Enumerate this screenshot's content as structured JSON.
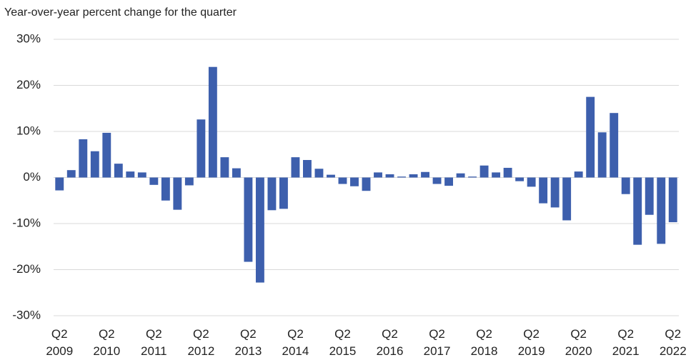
{
  "chart_data": {
    "type": "bar",
    "title": "Year-over-year percent change for the quarter",
    "categories": [
      "Q2 2009",
      null,
      null,
      null,
      "Q2 2010",
      null,
      null,
      null,
      "Q2 2011",
      null,
      null,
      null,
      "Q2 2012",
      null,
      null,
      null,
      "Q2 2013",
      null,
      null,
      null,
      "Q2 2014",
      null,
      null,
      null,
      "Q2 2015",
      null,
      null,
      null,
      "Q2 2016",
      null,
      null,
      null,
      "Q2 2017",
      null,
      null,
      null,
      "Q2 2018",
      null,
      null,
      null,
      "Q2 2019",
      null,
      null,
      null,
      "Q2 2020",
      null,
      null,
      null,
      "Q2 2021",
      null,
      null,
      null,
      "Q2 2022"
    ],
    "values": [
      -2.8,
      1.6,
      8.3,
      5.7,
      9.7,
      3.0,
      1.3,
      1.1,
      -1.6,
      -5.0,
      -7.0,
      -1.7,
      12.6,
      24.0,
      4.4,
      2.0,
      -18.3,
      -22.8,
      -7.1,
      -6.8,
      4.4,
      3.8,
      1.9,
      0.6,
      -1.4,
      -1.9,
      -2.9,
      1.1,
      0.7,
      0.2,
      0.7,
      1.2,
      -1.4,
      -1.8,
      0.9,
      0.2,
      2.6,
      1.1,
      2.1,
      -0.8,
      -2.0,
      -5.6,
      -6.5,
      -9.3,
      1.3,
      17.5,
      9.8,
      14.0,
      -3.6,
      -14.6,
      -8.1,
      -14.4,
      -9.7
    ],
    "color": "#3d5fad",
    "ylim": [
      -30,
      30
    ],
    "yticks": [
      {
        "value": -30,
        "label": "-30%"
      },
      {
        "value": -20,
        "label": "-20%"
      },
      {
        "value": -10,
        "label": "-10%"
      },
      {
        "value": 0,
        "label": "0%"
      },
      {
        "value": 10,
        "label": "10%"
      },
      {
        "value": 20,
        "label": "20%"
      },
      {
        "value": 30,
        "label": "30%"
      }
    ],
    "grid": true
  }
}
